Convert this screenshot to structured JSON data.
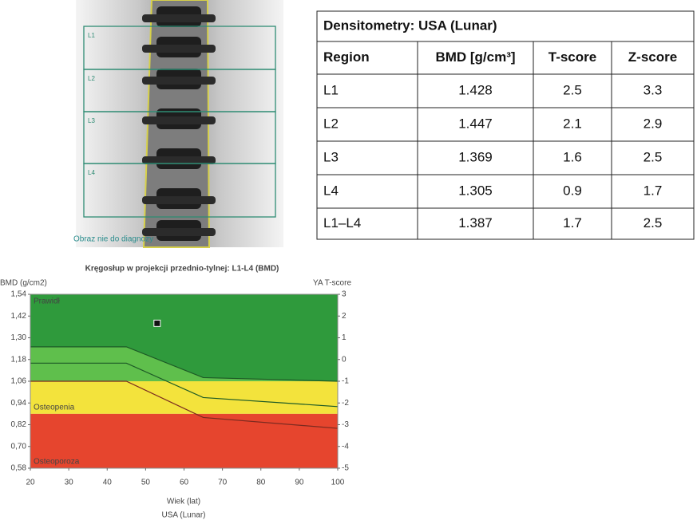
{
  "image": {
    "region_labels": [
      "L1",
      "L2",
      "L3",
      "L4"
    ],
    "caption": "Obraz nie do diagnozy"
  },
  "table": {
    "title": "Densitometry: USA (Lunar)",
    "header": [
      "Region",
      "BMD [g/cm³]",
      "T-score",
      "Z-score"
    ],
    "rows": [
      [
        "L1",
        "1.428",
        "2.5",
        "3.3"
      ],
      [
        "L2",
        "1.447",
        "2.1",
        "2.9"
      ],
      [
        "L3",
        "1.369",
        "1.6",
        "2.5"
      ],
      [
        "L4",
        "1.305",
        "0.9",
        "1.7"
      ],
      [
        "L1–L4",
        "1.387",
        "1.7",
        "2.5"
      ]
    ]
  },
  "chart_data": {
    "type": "line",
    "title": "Kręgosłup w projekcji przednio-tylnej: L1-L4 (BMD)",
    "y_label": "BMD (g/cm2)",
    "y2_label": "YA T-score",
    "x_label": "Wiek (lat)",
    "subtitle": "USA (Lunar)",
    "xlim": [
      20,
      100
    ],
    "xticks": [
      20,
      30,
      40,
      50,
      60,
      70,
      80,
      90,
      100
    ],
    "ylim": [
      0.58,
      1.54
    ],
    "yticks": [
      {
        "value": 0.58,
        "label": "0,58"
      },
      {
        "value": 0.7,
        "label": "0,70"
      },
      {
        "value": 0.82,
        "label": "0,82"
      },
      {
        "value": 0.94,
        "label": "0,94"
      },
      {
        "value": 1.06,
        "label": "1,06"
      },
      {
        "value": 1.18,
        "label": "1,18"
      },
      {
        "value": 1.3,
        "label": "1,30"
      },
      {
        "value": 1.42,
        "label": "1,42"
      },
      {
        "value": 1.54,
        "label": "1,54"
      }
    ],
    "y2lim": [
      -5,
      3
    ],
    "y2ticks": [
      -5,
      -4,
      -3,
      -2,
      -1,
      0,
      1,
      2,
      3
    ],
    "zones": [
      {
        "label": "Prawidł",
        "from": 1.06,
        "to": 1.54,
        "color": "#2f9a3c"
      },
      {
        "label": "Osteopenia",
        "from": 0.88,
        "to": 1.06,
        "color": "#f3e33c"
      },
      {
        "label": "Osteoporoza",
        "from": 0.58,
        "to": 0.88,
        "color": "#e6452e"
      }
    ],
    "curves": [
      {
        "x": [
          20,
          45,
          65,
          100
        ],
        "values": [
          1.25,
          1.25,
          1.08,
          1.06
        ],
        "color": "#1d5a26"
      },
      {
        "x": [
          20,
          45,
          65,
          100
        ],
        "values": [
          1.16,
          1.16,
          0.97,
          0.92
        ],
        "color": "#1d5a26"
      },
      {
        "x": [
          20,
          45,
          65,
          100
        ],
        "values": [
          1.06,
          1.06,
          0.86,
          0.8
        ],
        "color": "#7a2a20"
      }
    ],
    "band_color": "#5fbf4c",
    "points": [
      {
        "x": 53,
        "y": 1.38
      }
    ]
  }
}
